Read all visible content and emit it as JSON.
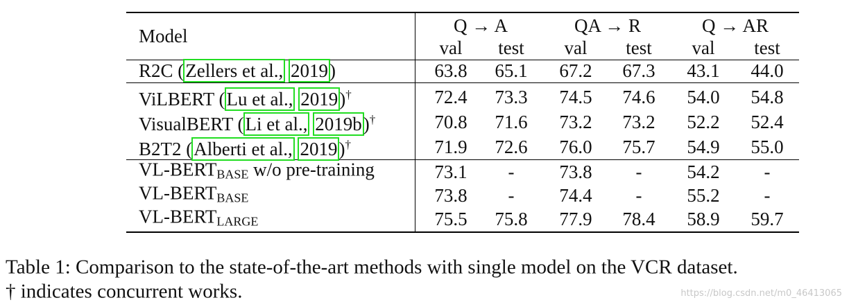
{
  "header": {
    "model": "Model",
    "groups": [
      "Q → A",
      "QA → R",
      "Q → AR"
    ],
    "subcols": [
      "val",
      "test",
      "val",
      "test",
      "val",
      "test"
    ]
  },
  "rows": [
    {
      "model": {
        "prefix": "R2C (",
        "cites": [
          "Zellers et al.,",
          "2019"
        ],
        "suffix": ")"
      },
      "values": [
        "63.8",
        "65.1",
        "67.2",
        "67.3",
        "43.1",
        "44.0"
      ]
    },
    {
      "model": {
        "prefix": "ViLBERT (",
        "cites": [
          "Lu et al.,",
          "2019"
        ],
        "suffix": ")",
        "sup": "†"
      },
      "values": [
        "72.4",
        "73.3",
        "74.5",
        "74.6",
        "54.0",
        "54.8"
      ]
    },
    {
      "model": {
        "prefix": "VisualBERT (",
        "cites": [
          "Li et al.,",
          "2019b"
        ],
        "suffix": ")",
        "sup": "†"
      },
      "values": [
        "70.8",
        "71.6",
        "73.2",
        "73.2",
        "52.2",
        "52.4"
      ]
    },
    {
      "model": {
        "prefix": "B2T2 (",
        "cites": [
          "Alberti et al.,",
          "2019"
        ],
        "suffix": ")",
        "sup": "†"
      },
      "values": [
        "71.9",
        "72.6",
        "76.0",
        "75.7",
        "54.9",
        "55.0"
      ]
    },
    {
      "model": {
        "prefix": "VL-BERT",
        "sub": "BASE",
        "suffix": " w/o pre-training"
      },
      "values": [
        "73.1",
        "-",
        "73.8",
        "-",
        "54.2",
        "-"
      ]
    },
    {
      "model": {
        "prefix": "VL-BERT",
        "sub": "BASE"
      },
      "values": [
        "73.8",
        "-",
        "74.4",
        "-",
        "55.2",
        "-"
      ]
    },
    {
      "model": {
        "prefix": "VL-BERT",
        "sub": "LARGE"
      },
      "values": [
        "75.5",
        "75.8",
        "77.9",
        "78.4",
        "58.9",
        "59.7"
      ]
    }
  ],
  "caption": [
    "Table 1: Comparison to the state-of-the-art methods with single model on the VCR dataset.",
    "† indicates concurrent works."
  ],
  "watermark": "https://blog.csdn.net/m0_46413065"
}
